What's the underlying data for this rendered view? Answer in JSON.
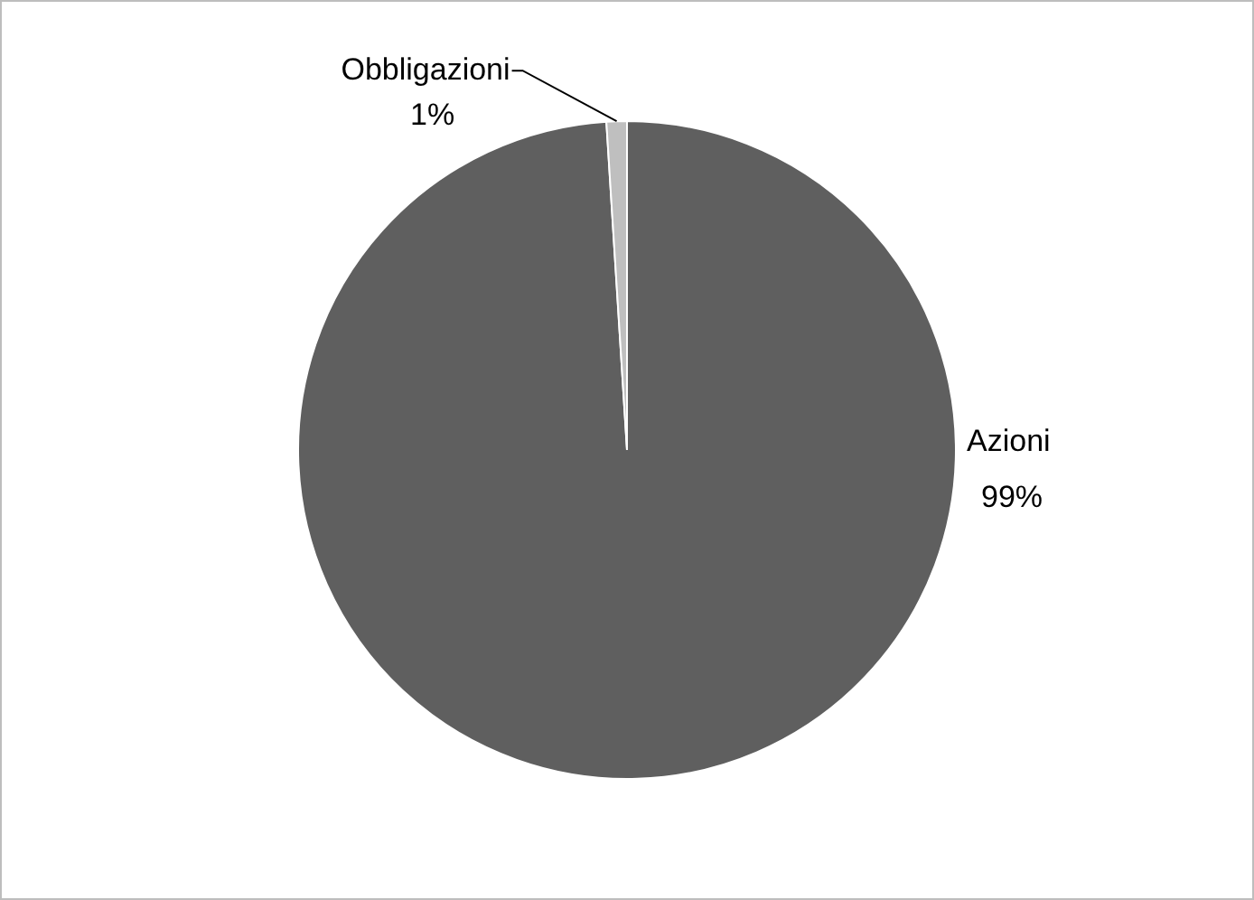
{
  "chart_data": {
    "type": "pie",
    "categories": [
      "Azioni",
      "Obbligazioni"
    ],
    "values": [
      99,
      1
    ],
    "colors": [
      "#5f5f5f",
      "#bfbfbf"
    ],
    "value_labels": [
      "99%",
      "1%"
    ],
    "legend": false
  }
}
